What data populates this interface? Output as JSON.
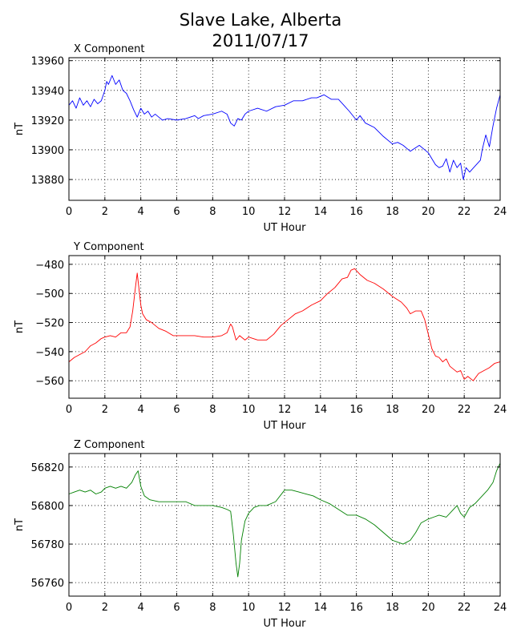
{
  "title": [
    "Slave Lake, Alberta",
    "2011/07/17"
  ],
  "chart_data": [
    {
      "type": "line",
      "title": "X Component",
      "xlabel": "UT Hour",
      "ylabel": "nT",
      "xlim": [
        0,
        24
      ],
      "ylim": [
        13866,
        13962
      ],
      "xticks": [
        0,
        2,
        4,
        6,
        8,
        10,
        12,
        14,
        16,
        18,
        20,
        22,
        24
      ],
      "yticks": [
        13880,
        13900,
        13920,
        13940,
        13960
      ],
      "grid": true,
      "color": "#0000ff",
      "series": [
        {
          "x": [
            0,
            0.2,
            0.4,
            0.6,
            0.8,
            1.0,
            1.2,
            1.4,
            1.6,
            1.8,
            2.0,
            2.1,
            2.2,
            2.4,
            2.6,
            2.8,
            3.0,
            3.2,
            3.4,
            3.6,
            3.8,
            4.0,
            4.2,
            4.4,
            4.6,
            4.8,
            5.0,
            5.2,
            5.5,
            6.0,
            6.5,
            7.0,
            7.2,
            7.5,
            8.0,
            8.5,
            8.8,
            9.0,
            9.2,
            9.4,
            9.6,
            9.8,
            10.0,
            10.5,
            11.0,
            11.5,
            12.0,
            12.5,
            13.0,
            13.5,
            13.8,
            14.2,
            14.6,
            15.0,
            15.3,
            15.6,
            16.0,
            16.2,
            16.5,
            17.0,
            17.5,
            18.0,
            18.3,
            18.6,
            19.0,
            19.5,
            19.8,
            20.0,
            20.2,
            20.4,
            20.6,
            20.8,
            21.0,
            21.2,
            21.4,
            21.6,
            21.8,
            21.95,
            22.1,
            22.3,
            22.6,
            22.9,
            23.0,
            23.2,
            23.4,
            23.6,
            23.8,
            24.0
          ],
          "y": [
            13930,
            13933,
            13928,
            13935,
            13930,
            13933,
            13929,
            13934,
            13931,
            13933,
            13940,
            13946,
            13944,
            13950,
            13944,
            13947,
            13940,
            13938,
            13933,
            13927,
            13922,
            13928,
            13924,
            13926,
            13922,
            13924,
            13922,
            13920,
            13921,
            13920,
            13921,
            13923,
            13921,
            13923,
            13924,
            13926,
            13924,
            13918,
            13916,
            13921,
            13920,
            13924,
            13926,
            13928,
            13926,
            13929,
            13930,
            13933,
            13933,
            13935,
            13935,
            13937,
            13934,
            13934,
            13930,
            13926,
            13920,
            13923,
            13918,
            13915,
            13909,
            13904,
            13905,
            13903,
            13899,
            13903,
            13900,
            13898,
            13894,
            13890,
            13888,
            13889,
            13894,
            13885,
            13893,
            13888,
            13891,
            13880,
            13888,
            13885,
            13889,
            13893,
            13900,
            13910,
            13902,
            13916,
            13928,
            13937
          ]
        }
      ]
    },
    {
      "type": "line",
      "title": "Y Component",
      "xlabel": "UT Hour",
      "ylabel": "nT",
      "xlim": [
        0,
        24
      ],
      "ylim": [
        -572,
        -474
      ],
      "xticks": [
        0,
        2,
        4,
        6,
        8,
        10,
        12,
        14,
        16,
        18,
        20,
        22,
        24
      ],
      "yticks": [
        -480,
        -500,
        -520,
        -540,
        -560
      ],
      "grid": true,
      "color": "#ff0000",
      "series": [
        {
          "x": [
            0,
            0.3,
            0.6,
            0.9,
            1.2,
            1.5,
            1.8,
            2.0,
            2.3,
            2.6,
            2.9,
            3.2,
            3.4,
            3.55,
            3.7,
            3.8,
            3.9,
            4.0,
            4.1,
            4.3,
            4.6,
            5.0,
            5.4,
            5.8,
            6.2,
            6.6,
            7.0,
            7.5,
            8.0,
            8.5,
            8.8,
            9.0,
            9.1,
            9.3,
            9.5,
            9.8,
            10.0,
            10.5,
            11.0,
            11.4,
            11.8,
            12.2,
            12.6,
            13.0,
            13.5,
            14.0,
            14.4,
            14.8,
            15.2,
            15.5,
            15.7,
            15.9,
            16.2,
            16.6,
            17.0,
            17.5,
            18.0,
            18.5,
            18.8,
            19.0,
            19.3,
            19.6,
            19.8,
            20.0,
            20.2,
            20.4,
            20.6,
            20.8,
            21.0,
            21.2,
            21.4,
            21.6,
            21.8,
            22.0,
            22.2,
            22.5,
            22.8,
            23.1,
            23.4,
            23.7,
            24.0
          ],
          "y": [
            -547,
            -544,
            -542,
            -540,
            -536,
            -534,
            -531,
            -530,
            -529,
            -530,
            -527,
            -527,
            -523,
            -512,
            -496,
            -486,
            -497,
            -508,
            -514,
            -518,
            -520,
            -524,
            -526,
            -529,
            -529,
            -529,
            -529,
            -530,
            -530,
            -529,
            -527,
            -521,
            -523,
            -532,
            -529,
            -532,
            -530,
            -532,
            -532,
            -528,
            -522,
            -518,
            -514,
            -512,
            -508,
            -505,
            -500,
            -496,
            -490,
            -489,
            -484,
            -483,
            -487,
            -491,
            -493,
            -497,
            -502,
            -506,
            -510,
            -514,
            -512,
            -512,
            -518,
            -528,
            -538,
            -543,
            -544,
            -547,
            -545,
            -550,
            -552,
            -554,
            -553,
            -559,
            -557,
            -560,
            -555,
            -553,
            -551,
            -548,
            -547
          ]
        }
      ]
    },
    {
      "type": "line",
      "title": "Z Component",
      "xlabel": "UT Hour",
      "ylabel": "nT",
      "xlim": [
        0,
        24
      ],
      "ylim": [
        56753,
        56827
      ],
      "xticks": [
        0,
        2,
        4,
        6,
        8,
        10,
        12,
        14,
        16,
        18,
        20,
        22,
        24
      ],
      "yticks": [
        56760,
        56780,
        56800,
        56820
      ],
      "grid": true,
      "color": "#008000",
      "series": [
        {
          "x": [
            0,
            0.3,
            0.6,
            0.9,
            1.2,
            1.5,
            1.8,
            2.0,
            2.3,
            2.6,
            2.9,
            3.2,
            3.5,
            3.7,
            3.85,
            4.0,
            4.2,
            4.5,
            5.0,
            5.5,
            6.0,
            6.5,
            7.0,
            7.5,
            8.0,
            8.5,
            8.8,
            9.0,
            9.15,
            9.3,
            9.4,
            9.5,
            9.6,
            9.8,
            10.0,
            10.3,
            10.6,
            11.0,
            11.5,
            12.0,
            12.4,
            12.8,
            13.2,
            13.6,
            14.0,
            14.5,
            15.0,
            15.5,
            16.0,
            16.5,
            17.0,
            17.5,
            18.0,
            18.3,
            18.6,
            19.0,
            19.3,
            19.6,
            20.0,
            20.3,
            20.6,
            21.0,
            21.3,
            21.6,
            21.8,
            22.0,
            22.3,
            22.6,
            23.0,
            23.3,
            23.6,
            23.8,
            24.0
          ],
          "y": [
            56806,
            56807,
            56808,
            56807,
            56808,
            56806,
            56807,
            56809,
            56810,
            56809,
            56810,
            56809,
            56812,
            56816,
            56818,
            56810,
            56805,
            56803,
            56802,
            56802,
            56802,
            56802,
            56800,
            56800,
            56800,
            56799,
            56798,
            56797,
            56785,
            56770,
            56763,
            56770,
            56782,
            56792,
            56796,
            56799,
            56800,
            56800,
            56802,
            56808,
            56808,
            56807,
            56806,
            56805,
            56803,
            56801,
            56798,
            56795,
            56795,
            56793,
            56790,
            56786,
            56782,
            56781,
            56780,
            56782,
            56786,
            56791,
            56793,
            56794,
            56795,
            56794,
            56797,
            56800,
            56796,
            56794,
            56799,
            56801,
            56805,
            56808,
            56812,
            56818,
            56822
          ]
        }
      ]
    }
  ]
}
